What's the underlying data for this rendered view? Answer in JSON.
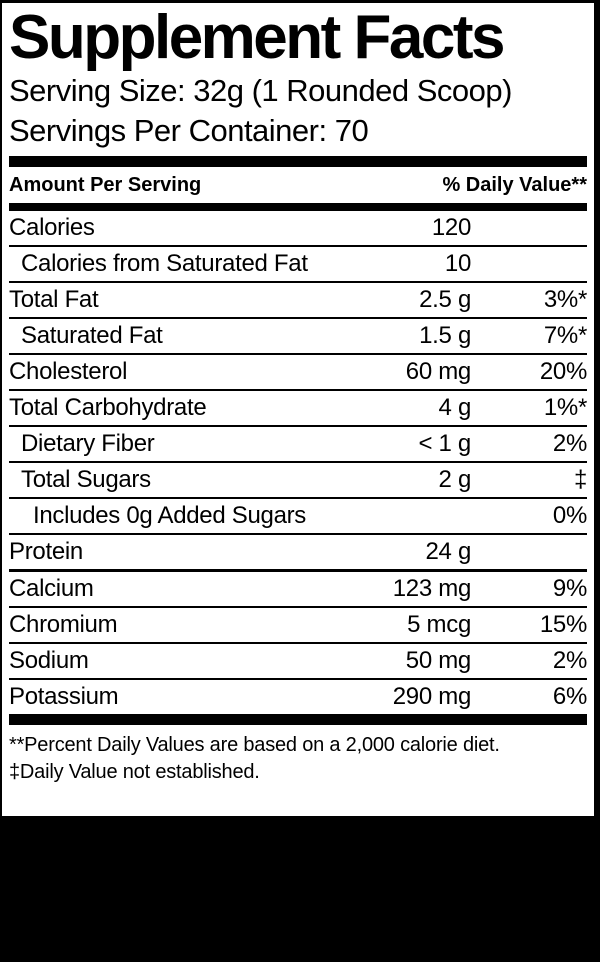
{
  "label": {
    "title": "Supplement Facts",
    "serving_size": "Serving Size: 32g (1 Rounded Scoop)",
    "servings_per_container": "Servings Per Container: 70",
    "header": {
      "amount_per_serving": "Amount Per Serving",
      "daily_value": "% Daily Value**"
    },
    "rows": [
      {
        "name": "Calories",
        "amount": "120",
        "dv": "",
        "indent": 0,
        "separator": "thin"
      },
      {
        "name": "Calories from Saturated Fat",
        "amount": "10",
        "dv": "",
        "indent": 1,
        "separator": "thin"
      },
      {
        "name": "Total Fat",
        "amount": "2.5 g",
        "dv": "3%*",
        "indent": 0,
        "separator": "thin"
      },
      {
        "name": "Saturated Fat",
        "amount": "1.5 g",
        "dv": "7%*",
        "indent": 1,
        "separator": "thin"
      },
      {
        "name": "Cholesterol",
        "amount": "60 mg",
        "dv": "20%",
        "indent": 0,
        "separator": "thin"
      },
      {
        "name": "Total Carbohydrate",
        "amount": "4 g",
        "dv": "1%*",
        "indent": 0,
        "separator": "thin"
      },
      {
        "name": "Dietary Fiber",
        "amount": "< 1 g",
        "dv": "2%",
        "indent": 1,
        "separator": "thin"
      },
      {
        "name": "Total Sugars",
        "amount": "2 g",
        "dv": "‡",
        "indent": 1,
        "separator": "thin"
      },
      {
        "name": "Includes 0g Added Sugars",
        "amount": "",
        "dv": "0%",
        "indent": 2,
        "separator": "thin"
      },
      {
        "name": "Protein",
        "amount": "24 g",
        "dv": "",
        "indent": 0,
        "separator": "medium"
      },
      {
        "name": "Calcium",
        "amount": "123 mg",
        "dv": "9%",
        "indent": 0,
        "separator": "thin"
      },
      {
        "name": "Chromium",
        "amount": "5 mcg",
        "dv": "15%",
        "indent": 0,
        "separator": "thin"
      },
      {
        "name": "Sodium",
        "amount": "50 mg",
        "dv": "2%",
        "indent": 0,
        "separator": "thin"
      },
      {
        "name": "Potassium",
        "amount": "290 mg",
        "dv": "6%",
        "indent": 0,
        "separator": "none"
      }
    ],
    "footnotes": [
      "**Percent Daily Values are based on a 2,000 calorie diet.",
      "‡Daily Value not established."
    ],
    "colors": {
      "text": "#000000",
      "label_background": "#ffffff",
      "page_background": "#000000"
    }
  }
}
